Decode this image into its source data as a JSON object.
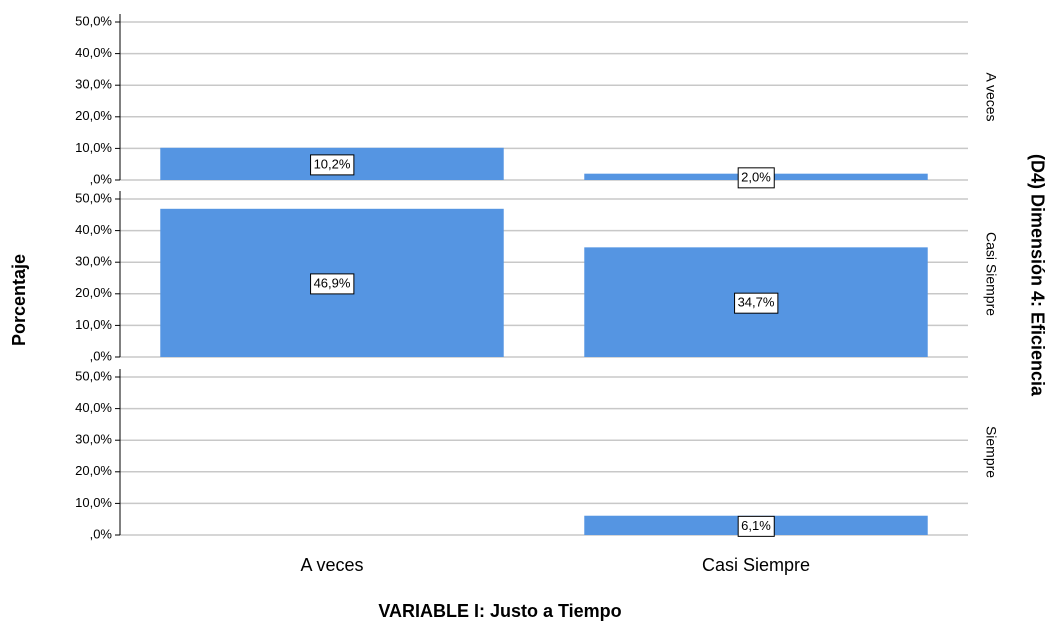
{
  "chart_data": {
    "type": "bar",
    "categories": [
      "A veces",
      "Casi Siempre"
    ],
    "panels": [
      {
        "name": "A veces",
        "values": [
          10.2,
          2.0
        ],
        "value_labels": [
          "10,2%",
          "2,0%"
        ]
      },
      {
        "name": "Casi Siempre",
        "values": [
          46.9,
          34.7
        ],
        "value_labels": [
          "46,9%",
          "34,7%"
        ]
      },
      {
        "name": "Siempre",
        "values": [
          null,
          6.1
        ],
        "value_labels": [
          null,
          "6,1%"
        ]
      }
    ],
    "color": "#5595e2",
    "ylim": [
      0,
      50
    ],
    "yticks": [
      {
        "value": 0,
        "label": ",0%"
      },
      {
        "value": 10,
        "label": "10,0%"
      },
      {
        "value": 20,
        "label": "20,0%"
      },
      {
        "value": 30,
        "label": "30,0%"
      },
      {
        "value": 40,
        "label": "40,0%"
      },
      {
        "value": 50,
        "label": "50,0%"
      }
    ],
    "grid": true,
    "x_label": "VARIABLE I: Justo a Tiempo",
    "y_label": "Porcentaje",
    "panel_title": "(D4) Dimensión 4:  Eficiencia"
  }
}
